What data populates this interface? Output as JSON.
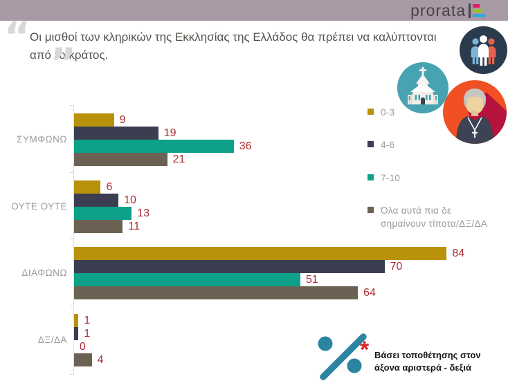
{
  "header": {
    "logo_text": "prorata"
  },
  "quote": {
    "text": "Οι μισθοί των κληρικών της Εκκλησίας της Ελλάδος θα πρέπει να καλύπτονται από το κράτος.",
    "open_mark": "“",
    "close_mark": "”"
  },
  "icons": {
    "people_group": "people-group-icon",
    "church": "church-icon",
    "priest": "priest-icon",
    "percent": "percent-icon"
  },
  "colors": {
    "header_bg": "#a79aa5",
    "logo_text": "#4a4049",
    "logo_bar_pink": "#e5186d",
    "logo_bar_green": "#9dbf26",
    "logo_bar_cyan": "#35a8dc",
    "quote_text": "#55504c",
    "quote_marks": "#d8d8d8",
    "category_label": "#9b9b9b",
    "value_label": "#ae2b32",
    "axis": "#dedede",
    "people_circle": "#2a3b4d",
    "church_circle": "#47a3b2",
    "priest_circle": "#f05023",
    "percent_sign": "#2b85a0",
    "asterisk": "#d8232a"
  },
  "footnote": {
    "marker": "*",
    "text": "Βάσει τοποθέτησης στον άξονα αριστερά - δεξιά"
  },
  "chart_data": {
    "type": "bar",
    "orientation": "horizontal",
    "title": "Οι μισθοί των κληρικών της Εκκλησίας της Ελλάδος θα πρέπει να καλύπτονται από το κράτος.",
    "categories": [
      "ΣΥΜΦΩΝΩ",
      "ΟΥΤΕ ΟΥΤΕ",
      "ΔΙΑΦΩΝΩ",
      "ΔΞ/ΔΑ"
    ],
    "series": [
      {
        "name": "0-3",
        "color": "#b8920a",
        "values": [
          9,
          6,
          84,
          1
        ]
      },
      {
        "name": "4-6",
        "color": "#3a3e50",
        "values": [
          19,
          10,
          70,
          1
        ]
      },
      {
        "name": "7-10",
        "color": "#0ea189",
        "values": [
          36,
          13,
          51,
          0
        ]
      },
      {
        "name": "Όλα αυτά πια δε σημαίνουν τίποτα/ΔΞ/ΔΑ",
        "color": "#6c6253",
        "values": [
          21,
          11,
          64,
          4
        ]
      }
    ],
    "value_labels_shown": true,
    "value_label_color": "#ae2b32",
    "xlim": [
      0,
      93
    ],
    "grid": false,
    "legend_position": "right"
  }
}
